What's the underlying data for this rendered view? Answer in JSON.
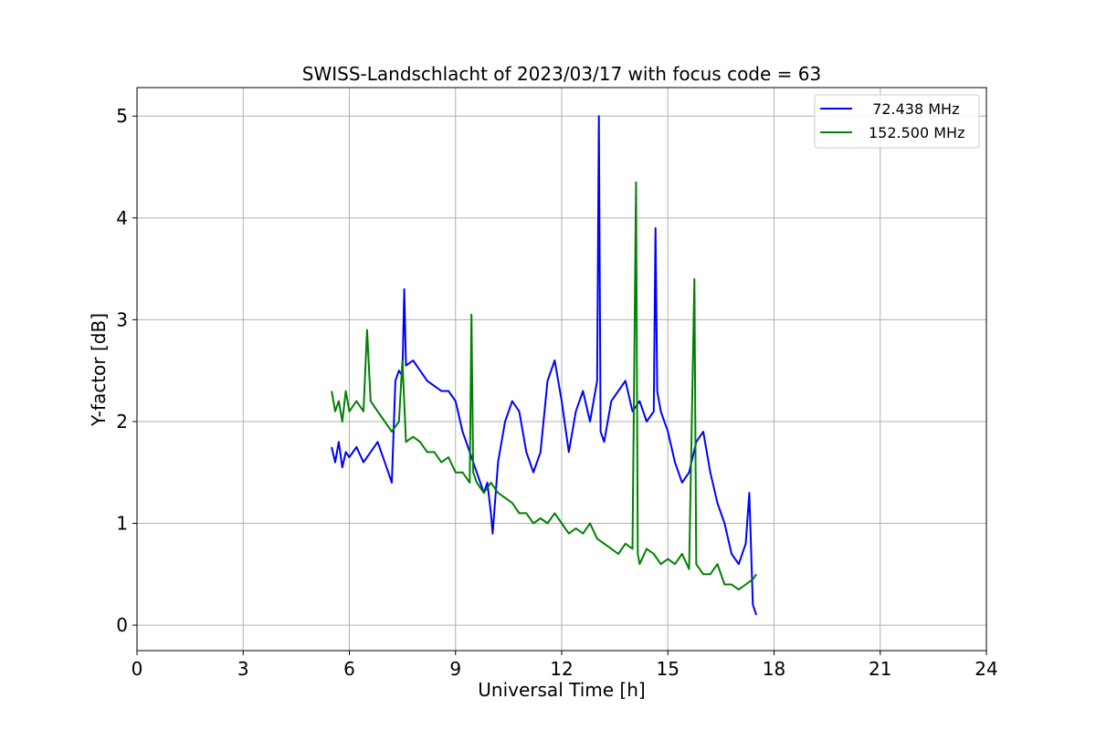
{
  "chart_data": {
    "type": "line",
    "title": "SWISS-Landschlacht of 2023/03/17 with focus code = 63",
    "xlabel": "Universal Time [h]",
    "ylabel": "Y-factor [dB]",
    "xlim": [
      0,
      24
    ],
    "ylim": [
      -0.25,
      5.28
    ],
    "xticks": [
      0,
      3,
      6,
      9,
      12,
      15,
      18,
      21,
      24
    ],
    "yticks": [
      0,
      1,
      2,
      3,
      4,
      5
    ],
    "grid": true,
    "legend_position": "top-right",
    "series": [
      {
        "name": "  72.438 MHz",
        "color": "#0000ff",
        "x": [
          5.5,
          5.6,
          5.7,
          5.8,
          5.9,
          6.0,
          6.2,
          6.4,
          6.6,
          6.8,
          7.0,
          7.2,
          7.3,
          7.4,
          7.5,
          7.55,
          7.6,
          7.8,
          8.0,
          8.2,
          8.4,
          8.6,
          8.8,
          9.0,
          9.2,
          9.4,
          9.6,
          9.8,
          9.9,
          10.0,
          10.05,
          10.2,
          10.4,
          10.6,
          10.8,
          11.0,
          11.2,
          11.4,
          11.6,
          11.8,
          12.0,
          12.2,
          12.4,
          12.6,
          12.8,
          13.0,
          13.05,
          13.1,
          13.2,
          13.4,
          13.6,
          13.8,
          14.0,
          14.2,
          14.4,
          14.6,
          14.65,
          14.7,
          14.8,
          15.0,
          15.2,
          15.4,
          15.6,
          15.8,
          16.0,
          16.2,
          16.4,
          16.6,
          16.8,
          17.0,
          17.2,
          17.3,
          17.4,
          17.5
        ],
        "y": [
          1.75,
          1.6,
          1.8,
          1.55,
          1.7,
          1.65,
          1.75,
          1.6,
          1.7,
          1.8,
          1.6,
          1.4,
          2.4,
          2.5,
          2.45,
          3.3,
          2.55,
          2.6,
          2.5,
          2.4,
          2.35,
          2.3,
          2.3,
          2.2,
          1.9,
          1.7,
          1.5,
          1.3,
          1.4,
          1.1,
          0.9,
          1.6,
          2.0,
          2.2,
          2.1,
          1.7,
          1.5,
          1.7,
          2.4,
          2.6,
          2.2,
          1.7,
          2.1,
          2.3,
          2.0,
          2.4,
          5.0,
          1.9,
          1.8,
          2.2,
          2.3,
          2.4,
          2.1,
          2.2,
          2.0,
          2.1,
          3.9,
          2.3,
          2.1,
          1.9,
          1.6,
          1.4,
          1.5,
          1.8,
          1.9,
          1.5,
          1.2,
          1.0,
          0.7,
          0.6,
          0.8,
          1.3,
          0.2,
          0.1
        ]
      },
      {
        "name": "152.500 MHz",
        "color": "#008000",
        "x": [
          5.5,
          5.6,
          5.7,
          5.8,
          5.9,
          6.0,
          6.2,
          6.4,
          6.5,
          6.6,
          6.8,
          7.0,
          7.2,
          7.4,
          7.5,
          7.6,
          7.8,
          8.0,
          8.2,
          8.4,
          8.6,
          8.8,
          9.0,
          9.2,
          9.4,
          9.45,
          9.5,
          9.6,
          9.8,
          10.0,
          10.2,
          10.4,
          10.6,
          10.8,
          11.0,
          11.2,
          11.4,
          11.6,
          11.8,
          12.0,
          12.2,
          12.4,
          12.6,
          12.8,
          13.0,
          13.2,
          13.4,
          13.6,
          13.8,
          14.0,
          14.1,
          14.15,
          14.2,
          14.4,
          14.6,
          14.8,
          15.0,
          15.2,
          15.4,
          15.6,
          15.75,
          15.8,
          16.0,
          16.2,
          16.4,
          16.6,
          16.8,
          17.0,
          17.2,
          17.4,
          17.5
        ],
        "y": [
          2.3,
          2.1,
          2.2,
          2.0,
          2.3,
          2.1,
          2.2,
          2.1,
          2.9,
          2.2,
          2.1,
          2.0,
          1.9,
          2.0,
          2.6,
          1.8,
          1.85,
          1.8,
          1.7,
          1.7,
          1.6,
          1.65,
          1.5,
          1.5,
          1.4,
          3.05,
          1.5,
          1.4,
          1.3,
          1.4,
          1.3,
          1.25,
          1.2,
          1.1,
          1.1,
          1.0,
          1.05,
          1.0,
          1.1,
          1.0,
          0.9,
          0.95,
          0.9,
          1.0,
          0.85,
          0.8,
          0.75,
          0.7,
          0.8,
          0.75,
          4.35,
          0.7,
          0.6,
          0.75,
          0.7,
          0.6,
          0.65,
          0.6,
          0.7,
          0.55,
          3.4,
          0.6,
          0.5,
          0.5,
          0.6,
          0.4,
          0.4,
          0.35,
          0.4,
          0.45,
          0.5
        ]
      }
    ]
  }
}
